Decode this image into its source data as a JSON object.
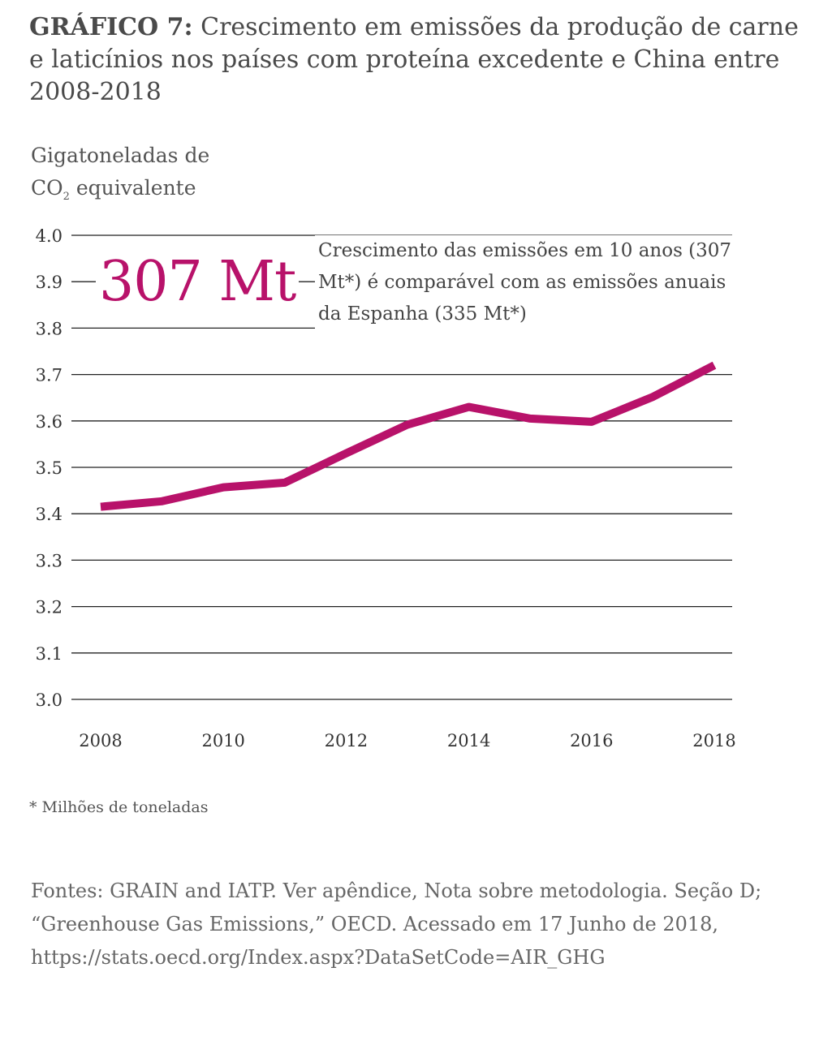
{
  "title": {
    "lead": "GRÁFICO 7:",
    "text": "Crescimento em emissões da produção de carne e laticínios nos países com proteína excedente e China entre 2008-2018"
  },
  "ylabel": {
    "line1": "Gigatoneladas de",
    "co": "CO",
    "sub": "2",
    "rest": "equivalente"
  },
  "annotation": {
    "big": "307 Mt",
    "text": "Crescimento das emissões em 10 anos (307 Mt*) é comparável com as emissões anuais da Espanha (335 Mt*)"
  },
  "footnote": "* Milhões de toneladas",
  "sources": "Fontes: GRAIN and IATP. Ver apêndice, Nota sobre metodologia. Seção D; “Greenhouse Gas Emissions,” OECD. Acessado em 17 Junho de 2018, https://stats.oecd.org/Index.aspx?DataSetCode=AIR_GHG",
  "colors": {
    "line": "#b8126a",
    "grid": "#222222"
  },
  "chart_data": {
    "type": "line",
    "x": [
      2008,
      2009,
      2010,
      2011,
      2012,
      2013,
      2014,
      2015,
      2016,
      2017,
      2018
    ],
    "series": [
      {
        "values": [
          3.415,
          3.427,
          3.457,
          3.467,
          3.53,
          3.592,
          3.63,
          3.605,
          3.598,
          3.652,
          3.72
        ]
      }
    ],
    "yticks": [
      "4.0",
      "3.9",
      "3.8",
      "3.7",
      "3.6",
      "3.5",
      "3.4",
      "3.3",
      "3.2",
      "3.1",
      "3.0"
    ],
    "xticks": [
      "2008",
      "2010",
      "2012",
      "2014",
      "2016",
      "2018"
    ],
    "ylim": [
      3.0,
      4.0
    ],
    "xlim": [
      2008,
      2018
    ],
    "grid": true
  }
}
